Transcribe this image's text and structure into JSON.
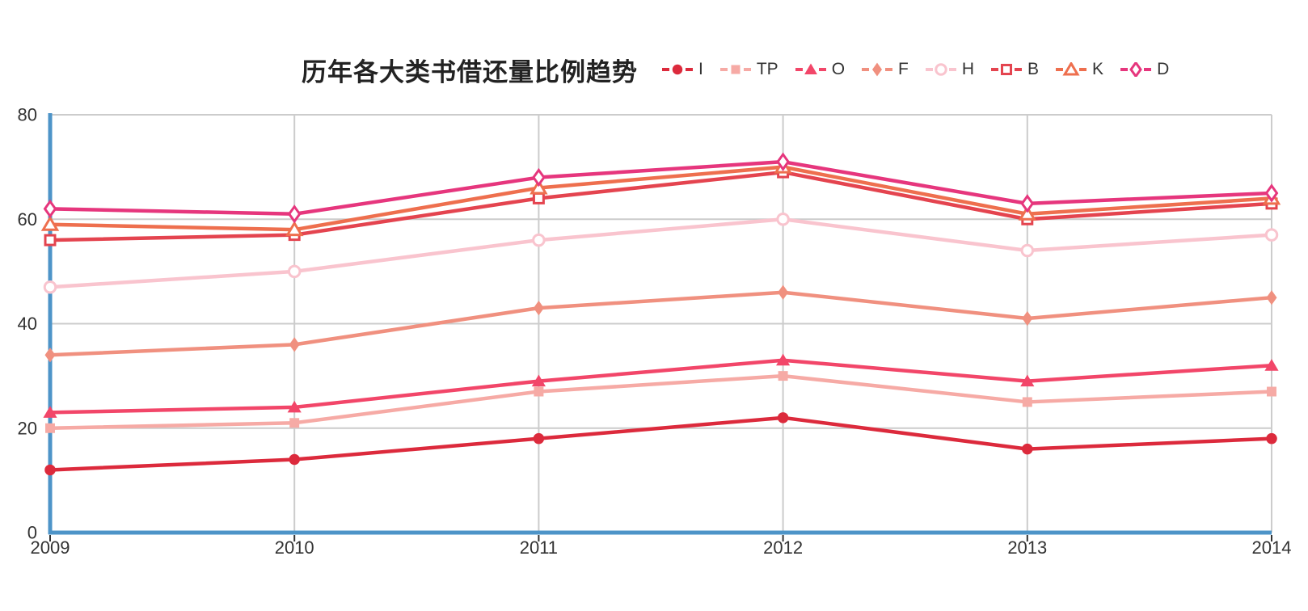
{
  "title": "历年各大类书借还量比例趋势",
  "styles": {
    "axis_line_color": "#4d94c8",
    "grid_color": "#cccccc",
    "tick_color": "#333333",
    "label_color": "#333333",
    "title_color": "#222222",
    "background": "#ffffff"
  },
  "chart_data": {
    "type": "line",
    "title": "历年各大类书借还量比例趋势",
    "x": [
      "2009",
      "2010",
      "2011",
      "2012",
      "2013",
      "2014"
    ],
    "xlabel": "",
    "ylabel": "",
    "y_ticks": [
      0,
      20,
      40,
      60,
      80
    ],
    "ylim": [
      0,
      80
    ],
    "grid": true,
    "legend_position": "top-right-of-title",
    "series": [
      {
        "name": "I",
        "marker": "circle",
        "filled": true,
        "color": "#dc2a3c",
        "values": [
          12,
          14,
          18,
          22,
          16,
          18
        ]
      },
      {
        "name": "TP",
        "marker": "square",
        "filled": true,
        "color": "#f6aaa5",
        "values": [
          20,
          21,
          27,
          30,
          25,
          27
        ]
      },
      {
        "name": "O",
        "marker": "triangle",
        "filled": true,
        "color": "#f24669",
        "values": [
          23,
          24,
          29,
          33,
          29,
          32
        ]
      },
      {
        "name": "F",
        "marker": "diamond",
        "filled": true,
        "color": "#f0907f",
        "values": [
          34,
          36,
          43,
          46,
          41,
          45
        ]
      },
      {
        "name": "H",
        "marker": "circle",
        "filled": false,
        "color": "#f9c4ce",
        "values": [
          47,
          50,
          56,
          60,
          54,
          57
        ]
      },
      {
        "name": "B",
        "marker": "square",
        "filled": false,
        "color": "#e4444f",
        "values": [
          56,
          57,
          64,
          69,
          60,
          63
        ]
      },
      {
        "name": "K",
        "marker": "triangle",
        "filled": false,
        "color": "#ee6f4e",
        "values": [
          59,
          58,
          66,
          70,
          61,
          64
        ]
      },
      {
        "name": "D",
        "marker": "diamond",
        "filled": false,
        "color": "#e6367d",
        "values": [
          62,
          61,
          68,
          71,
          63,
          65
        ]
      }
    ]
  }
}
